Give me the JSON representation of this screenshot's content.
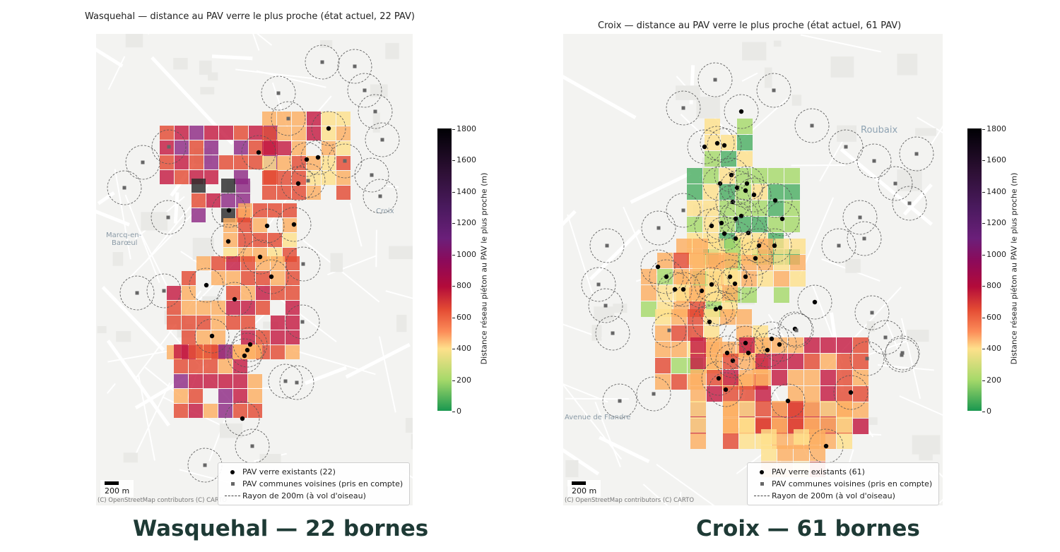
{
  "left": {
    "title": "Wasquehal — distance au PAV verre le plus proche (état actuel, 22 PAV)",
    "caption": "Wasquehal — 22 bornes",
    "places": [
      "Marcq-en-",
      "Barœul",
      "Croix"
    ],
    "legend": {
      "existing": "PAV verre existants (22)",
      "neighbors": "PAV communes voisines (pris en compte)",
      "radius": "Rayon de 200m (à vol d'oiseau)"
    },
    "scale": "200 m",
    "attribution": "(C) OpenStreetMap contributors (C) CARTO",
    "colorbar": {
      "label": "Distance réseau piéton au PAV le plus proche (m)",
      "ticks": [
        "1800",
        "1600",
        "1400",
        "1200",
        "1000",
        "800",
        "600",
        "400",
        "200",
        "0"
      ]
    }
  },
  "right": {
    "title": "Croix — distance au PAV verre le plus proche (état actuel, 61 PAV)",
    "caption": "Croix — 61 bornes",
    "places": [
      "Roubaix",
      "Avenue de Flandre"
    ],
    "legend": {
      "existing": "PAV verre existants (61)",
      "neighbors": "PAV communes voisines (pris en compte)",
      "radius": "Rayon de 200m (à vol d'oiseau)"
    },
    "scale": "200 m",
    "attribution": "(C) OpenStreetMap contributors (C) CARTO",
    "colorbar": {
      "label": "Distance réseau piéton au PAV le plus proche (m)",
      "ticks": [
        "1800",
        "1600",
        "1400",
        "1200",
        "1000",
        "800",
        "600",
        "400",
        "200",
        "0"
      ]
    }
  },
  "colors": {
    "green": "#4caf63",
    "lightgreen": "#a6d96a",
    "yellow": "#fee08b",
    "orange": "#fdae61",
    "red": "#e34a33",
    "crimson": "#c51b42",
    "purple": "#8e2a84",
    "dark": "#2b2b2b"
  }
}
